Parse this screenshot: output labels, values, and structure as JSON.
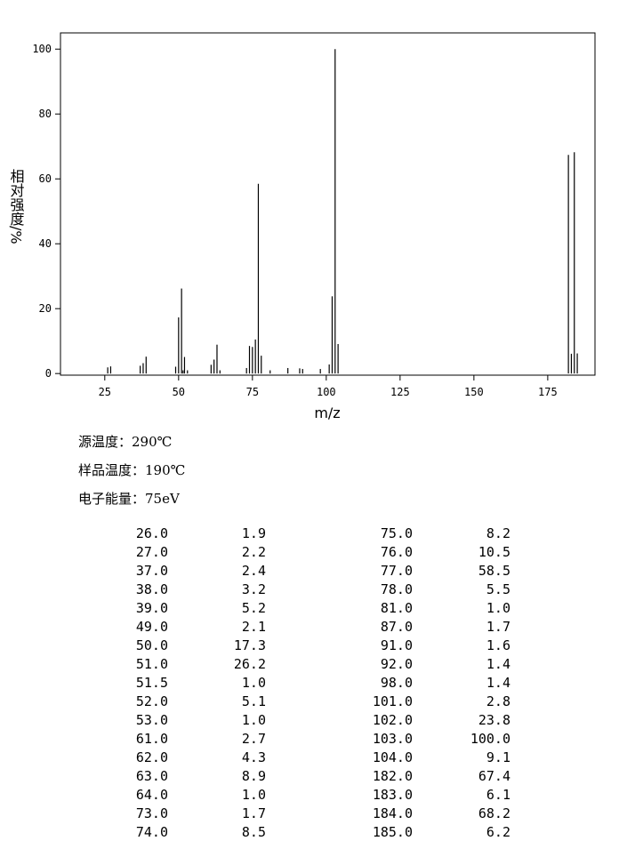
{
  "chart_data": {
    "type": "bar",
    "y_label": "相对强度/%",
    "x_label": "m/z",
    "color": "#000000",
    "xlim": [
      10,
      191
    ],
    "ylim": [
      -0.5,
      105
    ],
    "xticks": [
      25,
      50,
      75,
      100,
      125,
      150,
      175
    ],
    "yticks": [
      0,
      20,
      40,
      60,
      80,
      100
    ],
    "x": [
      26,
      27,
      37,
      38,
      39,
      49,
      50,
      51,
      51.5,
      52,
      53,
      61,
      62,
      63,
      64,
      73,
      74,
      75,
      76,
      77,
      78,
      81,
      87,
      91,
      92,
      98,
      101,
      102,
      103,
      104,
      182,
      183,
      184,
      185
    ],
    "values": [
      1.9,
      2.2,
      2.4,
      3.2,
      5.2,
      2.1,
      17.3,
      26.2,
      1.0,
      5.1,
      1.0,
      2.7,
      4.3,
      8.9,
      1.0,
      1.7,
      8.5,
      8.2,
      10.5,
      58.5,
      5.5,
      1.0,
      1.7,
      1.6,
      1.4,
      1.4,
      2.8,
      23.8,
      100.0,
      9.1,
      67.4,
      6.1,
      68.2,
      6.2
    ]
  },
  "notes": [
    "源温度：290℃",
    "样品温度：190℃",
    "电子能量：75eV"
  ],
  "table": {
    "rows": [
      [
        "26.0",
        "1.9"
      ],
      [
        "27.0",
        "2.2"
      ],
      [
        "37.0",
        "2.4"
      ],
      [
        "38.0",
        "3.2"
      ],
      [
        "39.0",
        "5.2"
      ],
      [
        "49.0",
        "2.1"
      ],
      [
        "50.0",
        "17.3"
      ],
      [
        "51.0",
        "26.2"
      ],
      [
        "51.5",
        "1.0"
      ],
      [
        "52.0",
        "5.1"
      ],
      [
        "53.0",
        "1.0"
      ],
      [
        "61.0",
        "2.7"
      ],
      [
        "62.0",
        "4.3"
      ],
      [
        "63.0",
        "8.9"
      ],
      [
        "64.0",
        "1.0"
      ],
      [
        "73.0",
        "1.7"
      ],
      [
        "74.0",
        "8.5"
      ],
      [
        "75.0",
        "8.2"
      ],
      [
        "76.0",
        "10.5"
      ],
      [
        "77.0",
        "58.5"
      ],
      [
        "78.0",
        "5.5"
      ],
      [
        "81.0",
        "1.0"
      ],
      [
        "87.0",
        "1.7"
      ],
      [
        "91.0",
        "1.6"
      ],
      [
        "92.0",
        "1.4"
      ],
      [
        "98.0",
        "1.4"
      ],
      [
        "101.0",
        "2.8"
      ],
      [
        "102.0",
        "23.8"
      ],
      [
        "103.0",
        "100.0"
      ],
      [
        "104.0",
        "9.1"
      ],
      [
        "182.0",
        "67.4"
      ],
      [
        "183.0",
        "6.1"
      ],
      [
        "184.0",
        "68.2"
      ],
      [
        "185.0",
        "6.2"
      ]
    ]
  }
}
